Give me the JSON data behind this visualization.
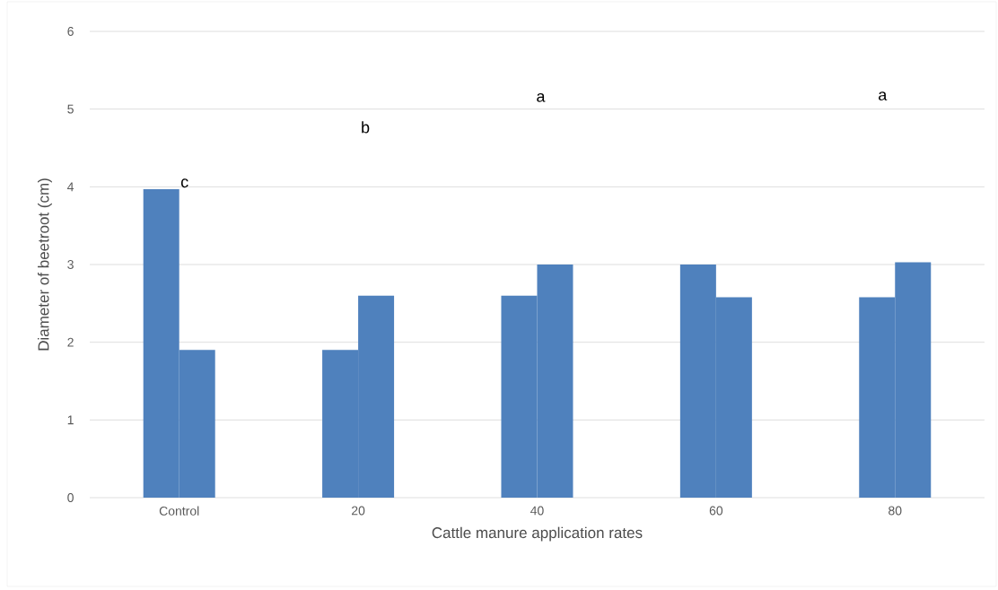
{
  "chart_data": {
    "type": "bar",
    "xlabel": "Cattle manure application rates",
    "ylabel": "Diameter of beetroot (cm)",
    "categories": [
      "Control",
      "20",
      "40",
      "60",
      "80"
    ],
    "series": [
      {
        "color": "#4f81bd",
        "values": [
          3.97,
          1.9,
          2.6,
          3.0,
          2.58
        ]
      },
      {
        "color": "#4f81bd",
        "values": [
          1.9,
          2.6,
          3.0,
          2.58,
          3.03
        ]
      }
    ],
    "ylim": [
      0,
      6
    ],
    "yticks": [
      0,
      1,
      2,
      3,
      4,
      5,
      6
    ],
    "grid": "y",
    "annotations": [
      "c",
      "b",
      "a",
      "a"
    ]
  }
}
